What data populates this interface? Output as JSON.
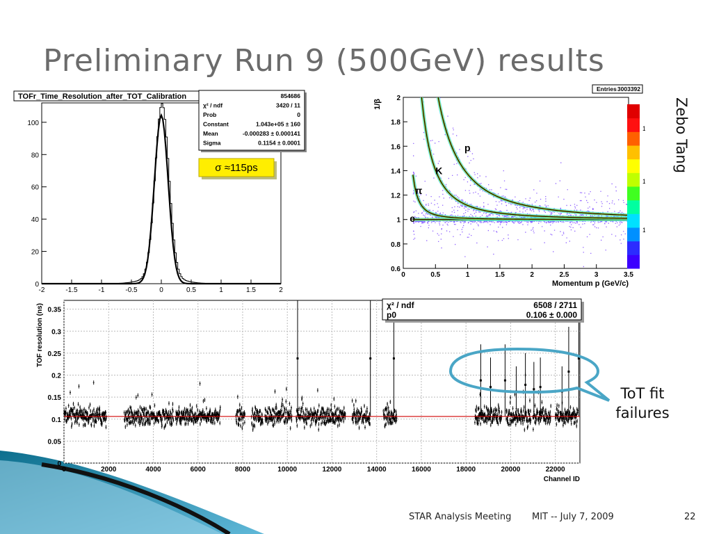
{
  "slide": {
    "title": "Preliminary Run 9 (500GeV) results",
    "author": "Zebo Tang",
    "callout": "ToT fit failures",
    "footer_meeting": "STAR Analysis Meeting",
    "footer_date": "MIT -- July 7, 2009",
    "page_number": "22"
  },
  "chart_data": [
    {
      "type": "histogram",
      "title": "TOFr_Time_Resolution_after_TOT_Calibration",
      "xlim": [
        -2,
        2
      ],
      "ylim": [
        0,
        112
      ],
      "x_ticks": [
        "-2",
        "-1.5",
        "-1",
        "-0.5",
        "0",
        "0.5",
        "1",
        "1.5",
        "2"
      ],
      "y_ticks": [
        "0",
        "20",
        "40",
        "60",
        "80",
        "100"
      ],
      "y_tick_multiplier": "×10³",
      "fit": {
        "model": "gaus",
        "constant_k": 104.3,
        "mean": -0.000283,
        "sigma": 0.1154
      },
      "stats": [
        {
          "label": "",
          "value": "854686"
        },
        {
          "label": "χ² / ndf",
          "value": "3420 / 11"
        },
        {
          "label": "Prob",
          "value": "0"
        },
        {
          "label": "Constant",
          "value": "1.043e+05 ± 160"
        },
        {
          "label": "Mean",
          "value": "-0.000283 ± 0.000141"
        },
        {
          "label": "Sigma",
          "value": "0.1154 ± 0.0001"
        }
      ],
      "annotation": "σ ≈115ps"
    },
    {
      "type": "heatmap",
      "xlabel": "Momentum p (GeV/c)",
      "ylabel": "1/β",
      "xlim": [
        0,
        3.5
      ],
      "ylim": [
        0.6,
        2
      ],
      "x_ticks": [
        "0",
        "0.5",
        "1",
        "1.5",
        "2",
        "2.5",
        "3",
        "3.5"
      ],
      "y_ticks": [
        "0.6",
        "0.8",
        "1",
        "1.2",
        "1.4",
        "1.6",
        "1.8",
        "2"
      ],
      "entries_label": "Entries",
      "entries": "3003392",
      "colorbar_ticks": [
        "10",
        "10²",
        "10³"
      ],
      "species": [
        {
          "label": "e",
          "mass": 0.000511
        },
        {
          "label": "π",
          "mass": 0.1396
        },
        {
          "label": "K",
          "mass": 0.4937
        },
        {
          "label": "p",
          "mass": 0.9383
        }
      ]
    },
    {
      "type": "scatter",
      "xlabel": "Channel ID",
      "ylabel": "TOF resolution (ns)",
      "xlim": [
        0,
        23100
      ],
      "ylim": [
        0,
        0.37
      ],
      "x_ticks": [
        "0",
        "2000",
        "4000",
        "6000",
        "8000",
        "10000",
        "12000",
        "14000",
        "16000",
        "18000",
        "20000",
        "22000"
      ],
      "y_ticks": [
        "0",
        "0.05",
        "0.1",
        "0.15",
        "0.2",
        "0.25",
        "0.3",
        "0.35"
      ],
      "fit": {
        "label": "p0",
        "value": "0.106 ± 0.000",
        "p0": 0.106,
        "chi2_label": "χ² / ndf",
        "chi2": "6508 / 2711"
      },
      "segments": [
        [
          0,
          1900
        ],
        [
          2700,
          4900
        ],
        [
          5000,
          7000
        ],
        [
          7700,
          8100
        ],
        [
          8400,
          8900
        ],
        [
          9000,
          10200
        ],
        [
          10400,
          12600
        ],
        [
          12900,
          13700
        ],
        [
          14300,
          14900
        ],
        [
          18400,
          19600
        ],
        [
          19800,
          20900
        ],
        [
          21000,
          21800
        ],
        [
          22000,
          23000
        ]
      ],
      "spikes": [
        {
          "ch": 10460,
          "v": 0.37
        },
        {
          "ch": 13720,
          "v": 0.37
        },
        {
          "ch": 14770,
          "v": 0.37
        },
        {
          "ch": 18660,
          "v": 0.27
        },
        {
          "ch": 19100,
          "v": 0.24
        },
        {
          "ch": 19750,
          "v": 0.27
        },
        {
          "ch": 20250,
          "v": 0.22
        },
        {
          "ch": 20660,
          "v": 0.25
        },
        {
          "ch": 21040,
          "v": 0.23
        },
        {
          "ch": 21330,
          "v": 0.24
        },
        {
          "ch": 22300,
          "v": 0.22
        },
        {
          "ch": 22600,
          "v": 0.31
        },
        {
          "ch": 23050,
          "v": 0.37
        }
      ]
    }
  ]
}
